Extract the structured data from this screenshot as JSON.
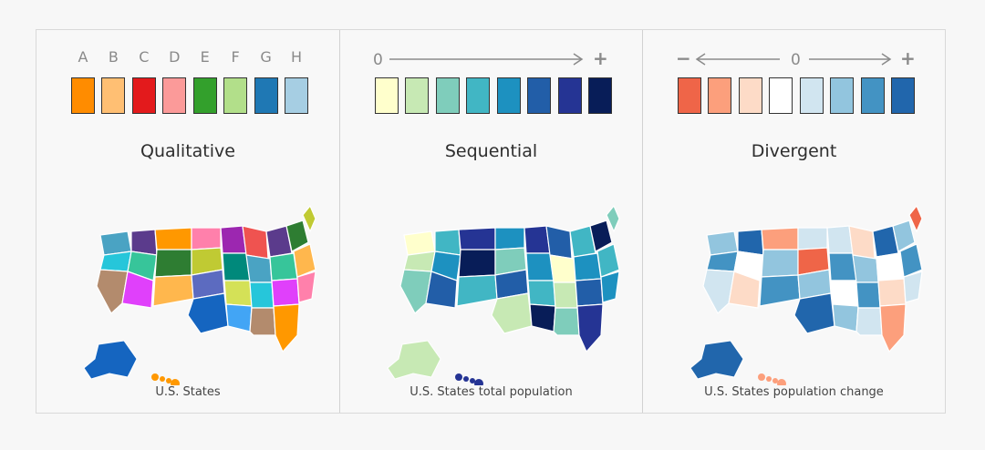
{
  "panels": [
    {
      "kind": "qualitative",
      "title": "Qualitative",
      "caption": "U.S. States",
      "letters": [
        "A",
        "B",
        "C",
        "D",
        "E",
        "F",
        "G",
        "H"
      ],
      "swatches": [
        "#ff8c00",
        "#ffbf73",
        "#e31a1c",
        "#fb9a99",
        "#33a02c",
        "#b2df8a",
        "#1f78b4",
        "#a6cee3"
      ],
      "map_colors": [
        "#4aa3c3",
        "#26c6da",
        "#b38b6d",
        "#5b3b8c",
        "#37c59a",
        "#e040fb",
        "#ff9800",
        "#2e7d32",
        "#ffb74d",
        "#ff80ab",
        "#c0ca33",
        "#5c6bc0",
        "#1565c0",
        "#9c27b0",
        "#00897b",
        "#d4e157",
        "#42a5f5",
        "#ef5350"
      ]
    },
    {
      "kind": "sequential",
      "title": "Sequential",
      "caption": "U.S. States total population",
      "scale": {
        "start": "0",
        "end": "+"
      },
      "swatches": [
        "#ffffcc",
        "#c7e9b4",
        "#7fcdbb",
        "#41b6c4",
        "#1d91c0",
        "#225ea8",
        "#253494",
        "#081d58"
      ],
      "map_colors": [
        "#ffffcc",
        "#c7e9b4",
        "#7fcdbb",
        "#41b6c4",
        "#1d91c0",
        "#225ea8",
        "#253494",
        "#081d58",
        "#41b6c4",
        "#1d91c0",
        "#7fcdbb",
        "#225ea8",
        "#c7e9b4",
        "#253494",
        "#1d91c0",
        "#41b6c4",
        "#081d58",
        "#225ea8"
      ]
    },
    {
      "kind": "divergent",
      "title": "Divergent",
      "caption": "U.S. States population change",
      "scale": {
        "start": "−",
        "mid": "0",
        "end": "+"
      },
      "swatches": [
        "#ef6548",
        "#fc9f7c",
        "#fddbc7",
        "#ffffff",
        "#d1e5f0",
        "#92c5de",
        "#4393c3",
        "#2166ac"
      ],
      "map_colors": [
        "#92c5de",
        "#4393c3",
        "#d1e5f0",
        "#2166ac",
        "#ffffff",
        "#fddbc7",
        "#fc9f7c",
        "#92c5de",
        "#4393c3",
        "#d1e5f0",
        "#ef6548",
        "#92c5de",
        "#2166ac",
        "#d1e5f0",
        "#4393c3",
        "#ffffff",
        "#92c5de",
        "#fddbc7"
      ]
    }
  ]
}
